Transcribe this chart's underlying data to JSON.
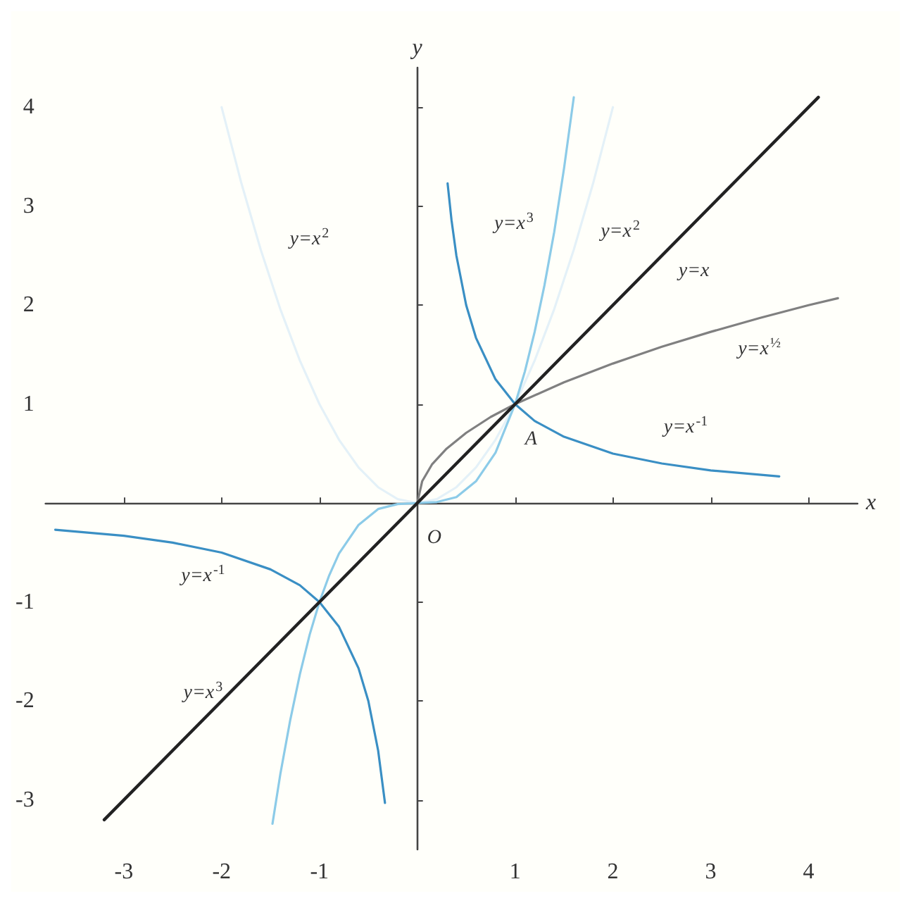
{
  "chart_data": {
    "type": "line",
    "xlabel": "x",
    "ylabel": "y",
    "xlim": [
      -3.8,
      4.5
    ],
    "ylim": [
      -3.5,
      4.4
    ],
    "xticks": [
      -3,
      -2,
      -1,
      1,
      2,
      3,
      4
    ],
    "yticks": [
      -3,
      -2,
      -1,
      1,
      2,
      3,
      4
    ],
    "grid": false,
    "marker": "none",
    "line_style": "solid",
    "series": [
      {
        "color": "#e4f1f8",
        "x": [
          -2,
          -1.8,
          -1.6,
          -1.4,
          -1.2,
          -1,
          -0.8,
          -0.6,
          -0.4,
          -0.2,
          0,
          0.2,
          0.4,
          0.6,
          0.8,
          1,
          1.2,
          1.4,
          1.6,
          1.8,
          2
        ],
        "values": [
          4,
          3.24,
          2.56,
          1.96,
          1.44,
          1,
          0.64,
          0.36,
          0.16,
          0.04,
          0,
          0.04,
          0.16,
          0.36,
          0.64,
          1,
          1.44,
          1.96,
          2.56,
          3.24,
          4
        ]
      },
      {
        "color": "#8ccbe8",
        "x": [
          -1.48,
          -1.4,
          -1.3,
          -1.2,
          -1.1,
          -1,
          -0.9,
          -0.8,
          -0.6,
          -0.4,
          -0.2,
          0,
          0.2,
          0.4,
          0.6,
          0.8,
          1,
          1.1,
          1.2,
          1.3,
          1.4,
          1.5,
          1.6
        ],
        "values": [
          -3.24,
          -2.74,
          -2.2,
          -1.73,
          -1.33,
          -1,
          -0.73,
          -0.51,
          -0.22,
          -0.06,
          -0.01,
          0,
          0.01,
          0.06,
          0.22,
          0.51,
          1,
          1.33,
          1.73,
          2.2,
          2.74,
          3.38,
          4.1
        ]
      },
      {
        "color": "#808080",
        "x": [
          0,
          0.05,
          0.15,
          0.3,
          0.5,
          0.75,
          1,
          1.5,
          2,
          2.5,
          3,
          3.5,
          4,
          4.3
        ],
        "values": [
          0,
          0.22,
          0.39,
          0.55,
          0.71,
          0.87,
          1,
          1.22,
          1.41,
          1.58,
          1.73,
          1.87,
          2,
          2.07
        ]
      },
      {
        "color": "#3a8fc4",
        "x": [
          -3.7,
          -3,
          -2.5,
          -2,
          -1.5,
          -1.2,
          -1,
          -0.8,
          -0.6,
          -0.5,
          -0.4,
          -0.33,
          0,
          0.31,
          0.35,
          0.4,
          0.5,
          0.6,
          0.8,
          1,
          1.2,
          1.5,
          2,
          2.5,
          3,
          3.7
        ],
        "values": [
          -0.27,
          -0.33,
          -0.4,
          -0.5,
          -0.67,
          -0.83,
          -1,
          -1.25,
          -1.67,
          -2,
          -2.5,
          -3.03,
          null,
          3.23,
          2.86,
          2.5,
          2,
          1.67,
          1.25,
          1,
          0.83,
          0.67,
          0.5,
          0.4,
          0.33,
          0.27
        ]
      },
      {
        "color": "#222222",
        "x": [
          -3.2,
          4.1
        ],
        "values": [
          -3.2,
          4.1
        ]
      }
    ],
    "annotations": [
      "y=x$^{2}$",
      "y=x$^{3}$",
      "y=x$^{2}$",
      "y=x",
      "y=x$^{½}$",
      {
        "text": "A",
        "x": 1,
        "y": 1
      },
      "y=x$^{-1}$",
      {
        "text": "O",
        "x": 0,
        "y": 0
      },
      "y=x$^{-1}$",
      "y=x$^{3}$"
    ]
  }
}
